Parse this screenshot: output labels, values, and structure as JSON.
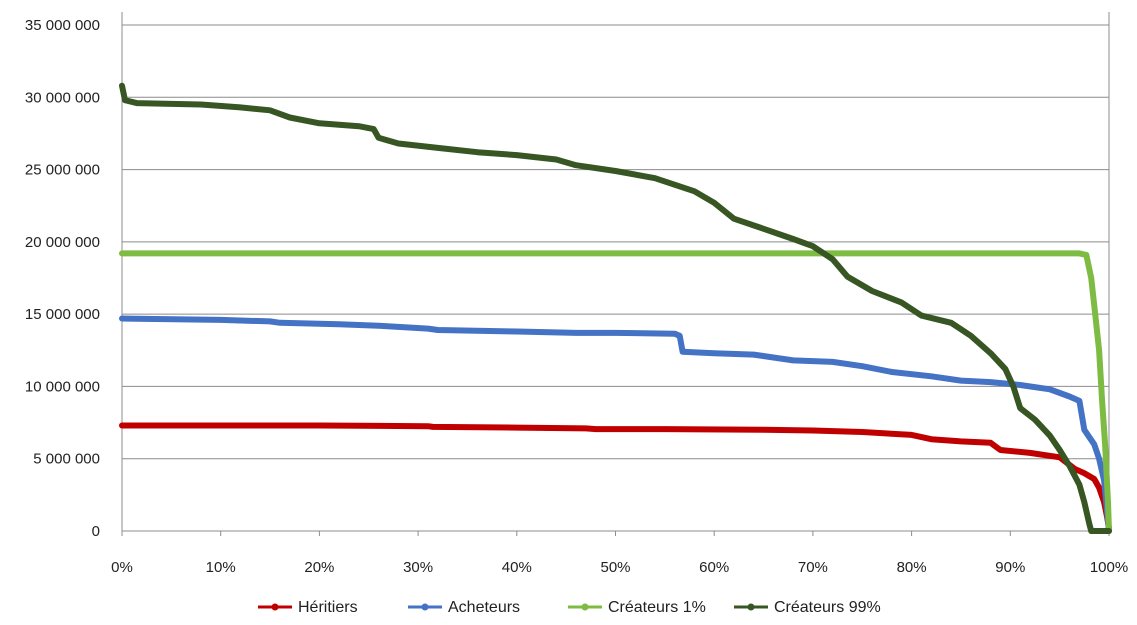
{
  "chart_data": {
    "type": "line",
    "title": "",
    "xlabel": "",
    "ylabel": "",
    "xlim": [
      0,
      100
    ],
    "ylim": [
      0,
      35000000
    ],
    "grid": "horizontal",
    "legend_position": "bottom",
    "x_tick_labels": [
      "0%",
      "10%",
      "20%",
      "30%",
      "40%",
      "50%",
      "60%",
      "70%",
      "80%",
      "90%",
      "100%"
    ],
    "x_ticks": [
      0,
      10,
      20,
      30,
      40,
      50,
      60,
      70,
      80,
      90,
      100
    ],
    "y_tick_labels": [
      "0",
      "5 000 000",
      "10 000 000",
      "15 000 000",
      "20 000 000",
      "25 000 000",
      "30 000 000",
      "35 000 000"
    ],
    "y_ticks": [
      0,
      5000000,
      10000000,
      15000000,
      20000000,
      25000000,
      30000000,
      35000000
    ],
    "series": [
      {
        "name": "Héritiers",
        "color": "#c00000",
        "points": [
          [
            0,
            7300000
          ],
          [
            10,
            7300000
          ],
          [
            20,
            7300000
          ],
          [
            31,
            7250000
          ],
          [
            31.5,
            7200000
          ],
          [
            40,
            7150000
          ],
          [
            47,
            7100000
          ],
          [
            48,
            7050000
          ],
          [
            55,
            7050000
          ],
          [
            65,
            7000000
          ],
          [
            70,
            6950000
          ],
          [
            75,
            6850000
          ],
          [
            80,
            6650000
          ],
          [
            82,
            6350000
          ],
          [
            85,
            6200000
          ],
          [
            88,
            6100000
          ],
          [
            89,
            5600000
          ],
          [
            92,
            5400000
          ],
          [
            95,
            5100000
          ],
          [
            96.5,
            4300000
          ],
          [
            97.5,
            4000000
          ],
          [
            98.5,
            3600000
          ],
          [
            99,
            3000000
          ],
          [
            99.5,
            2000000
          ],
          [
            99.8,
            1000000
          ],
          [
            100,
            200000
          ]
        ]
      },
      {
        "name": "Acheteurs",
        "color": "#4472c4",
        "points": [
          [
            0,
            14700000
          ],
          [
            10,
            14600000
          ],
          [
            15,
            14500000
          ],
          [
            16,
            14400000
          ],
          [
            22,
            14300000
          ],
          [
            26,
            14200000
          ],
          [
            31,
            14000000
          ],
          [
            32,
            13900000
          ],
          [
            40,
            13800000
          ],
          [
            46,
            13700000
          ],
          [
            50,
            13700000
          ],
          [
            56,
            13650000
          ],
          [
            56.5,
            13500000
          ],
          [
            56.8,
            12400000
          ],
          [
            60,
            12300000
          ],
          [
            64,
            12200000
          ],
          [
            66,
            12000000
          ],
          [
            68,
            11800000
          ],
          [
            72,
            11700000
          ],
          [
            75,
            11400000
          ],
          [
            78,
            11000000
          ],
          [
            82,
            10700000
          ],
          [
            85,
            10400000
          ],
          [
            88,
            10300000
          ],
          [
            91,
            10100000
          ],
          [
            94,
            9800000
          ],
          [
            96,
            9300000
          ],
          [
            97,
            9000000
          ],
          [
            97.5,
            7000000
          ],
          [
            98.5,
            6000000
          ],
          [
            99,
            5000000
          ],
          [
            99.5,
            3500000
          ],
          [
            100,
            0
          ]
        ]
      },
      {
        "name": "Créateurs 1%",
        "color": "#7dbb42",
        "points": [
          [
            0,
            19200000
          ],
          [
            50,
            19200000
          ],
          [
            97,
            19200000
          ],
          [
            97.7,
            19100000
          ],
          [
            98.2,
            17500000
          ],
          [
            98.6,
            15000000
          ],
          [
            99,
            12500000
          ],
          [
            99.3,
            9000000
          ],
          [
            99.6,
            6000000
          ],
          [
            99.9,
            2000000
          ],
          [
            100,
            0
          ]
        ]
      },
      {
        "name": "Créateurs 99%",
        "color": "#375623",
        "points": [
          [
            0,
            30800000
          ],
          [
            0.3,
            29800000
          ],
          [
            1.5,
            29600000
          ],
          [
            8,
            29500000
          ],
          [
            12,
            29300000
          ],
          [
            15,
            29100000
          ],
          [
            17,
            28600000
          ],
          [
            20,
            28200000
          ],
          [
            24,
            28000000
          ],
          [
            25.5,
            27800000
          ],
          [
            26,
            27200000
          ],
          [
            28,
            26800000
          ],
          [
            32,
            26500000
          ],
          [
            36,
            26200000
          ],
          [
            40,
            26000000
          ],
          [
            44,
            25700000
          ],
          [
            46,
            25300000
          ],
          [
            50,
            24900000
          ],
          [
            54,
            24400000
          ],
          [
            58,
            23500000
          ],
          [
            60,
            22700000
          ],
          [
            62,
            21600000
          ],
          [
            65,
            20900000
          ],
          [
            68,
            20200000
          ],
          [
            70,
            19700000
          ],
          [
            72,
            18800000
          ],
          [
            73.5,
            17600000
          ],
          [
            76,
            16600000
          ],
          [
            79,
            15800000
          ],
          [
            81,
            14900000
          ],
          [
            84,
            14400000
          ],
          [
            86,
            13500000
          ],
          [
            88,
            12300000
          ],
          [
            89.5,
            11200000
          ],
          [
            90.3,
            10000000
          ],
          [
            91,
            8500000
          ],
          [
            92.5,
            7700000
          ],
          [
            94,
            6600000
          ],
          [
            95,
            5600000
          ],
          [
            96,
            4500000
          ],
          [
            97,
            3200000
          ],
          [
            97.5,
            2000000
          ],
          [
            98,
            500000
          ],
          [
            98.2,
            0
          ],
          [
            100,
            0
          ]
        ]
      }
    ]
  }
}
